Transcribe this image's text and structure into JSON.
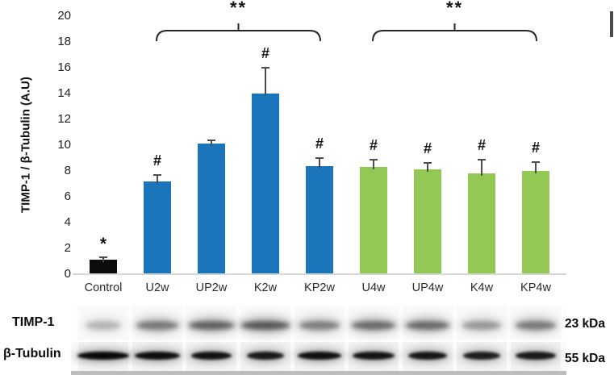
{
  "figure_title": "TIMP-1 expression bar chart with western blots",
  "chart_data": {
    "type": "bar",
    "title": "",
    "xlabel": "",
    "ylabel": "TIMP-1 / β-Tubulin (A.U)",
    "ylim": [
      0,
      20
    ],
    "ytick_step": 2,
    "yticks": [
      0,
      2,
      4,
      6,
      8,
      10,
      12,
      14,
      16,
      18,
      20
    ],
    "grid": false,
    "categories": [
      "Control",
      "U2w",
      "UP2w",
      "K2w",
      "KP2w",
      "U4w",
      "UP4w",
      "K4w",
      "KP4w"
    ],
    "values": [
      1.1,
      7.2,
      10.1,
      14.0,
      8.4,
      8.3,
      8.1,
      7.8,
      8.0
    ],
    "errors": [
      0.2,
      0.5,
      0.3,
      2.0,
      0.6,
      0.6,
      0.5,
      1.1,
      0.7
    ],
    "bar_colors": [
      "#0c0c0c",
      "#1b75bb",
      "#1b75bb",
      "#1b75bb",
      "#1b75bb",
      "#92c853",
      "#92c853",
      "#92c853",
      "#92c853"
    ],
    "significance_symbols": [
      "*",
      "#",
      "",
      "#",
      "#",
      "#",
      "#",
      "#",
      "#"
    ],
    "brackets": [
      {
        "label": "**",
        "from_category": "U2w",
        "to_category": "KP2w"
      },
      {
        "label": "**",
        "from_category": "U4w",
        "to_category": "KP4w"
      }
    ],
    "legend_position": "cropped-at-right-edge"
  },
  "blots": {
    "rows": [
      {
        "label": "TIMP-1",
        "size_label": "23 kDa",
        "band_intensities": [
          0.28,
          0.56,
          0.68,
          0.72,
          0.52,
          0.62,
          0.63,
          0.4,
          0.55
        ]
      },
      {
        "label": "β-Tubulin",
        "size_label": "55 kDa",
        "band_intensities": [
          1.0,
          0.97,
          0.95,
          0.9,
          0.96,
          0.93,
          0.92,
          0.88,
          0.9
        ]
      }
    ]
  }
}
